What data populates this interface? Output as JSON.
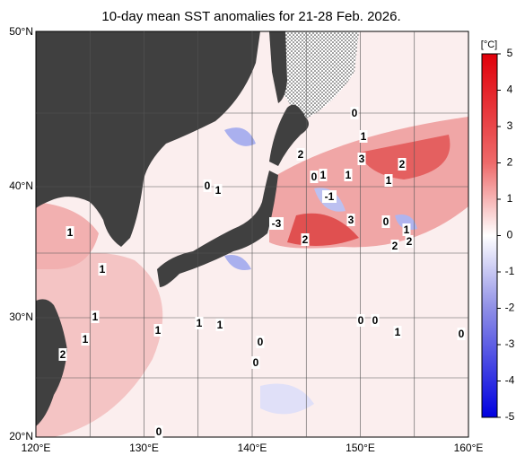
{
  "title": "10-day mean SST anomalies for 21-28 Feb. 2026.",
  "colorbar": {
    "unit": "[°C]",
    "ticks": [
      5,
      4,
      3,
      2,
      1,
      0,
      -1,
      -2,
      -3,
      -4,
      -5
    ]
  },
  "lat_labels": [
    "50°N",
    "40°N",
    "30°N",
    "20°N"
  ],
  "lon_labels": [
    "120°E",
    "130°E",
    "140°E",
    "150°E",
    "160°E"
  ],
  "contour_labels": [
    "0",
    "1",
    "2",
    "3",
    "2",
    "0",
    "1",
    "1",
    "1",
    "0",
    "1",
    "-1",
    "-3",
    "3",
    "0",
    "1",
    "2",
    "2",
    "2",
    "1",
    "1",
    "1",
    "1",
    "1",
    "1",
    "0",
    "0",
    "1",
    "0",
    "1",
    "0",
    "2",
    "0",
    "0"
  ]
}
